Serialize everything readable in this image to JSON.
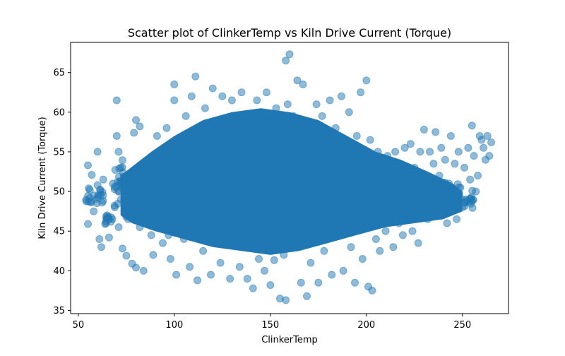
{
  "chart_data": {
    "type": "scatter",
    "title": "Scatter plot of ClinkerTemp vs Kiln Drive Current (Torque)",
    "xlabel": "ClinkerTemp",
    "ylabel": "Kiln Drive Current (Torque)",
    "xlim": [
      46,
      274
    ],
    "ylim": [
      34.6,
      68.8
    ],
    "xticks": [
      50,
      100,
      150,
      200,
      250
    ],
    "yticks": [
      35,
      40,
      45,
      50,
      55,
      60,
      65
    ],
    "xtick_labels": [
      "50",
      "100",
      "150",
      "200",
      "250"
    ],
    "ytick_labels": [
      "35",
      "40",
      "45",
      "50",
      "55",
      "60",
      "65"
    ],
    "grid": false,
    "legend": "none",
    "marker_color": "#1f77b4",
    "marker_alpha": 0.5,
    "points": [
      [
        55,
        53.3
      ],
      [
        55,
        45.9
      ],
      [
        56,
        50.2
      ],
      [
        57,
        52.1
      ],
      [
        58,
        47.5
      ],
      [
        60,
        50.8
      ],
      [
        60,
        55.0
      ],
      [
        61,
        44.0
      ],
      [
        62,
        43.0
      ],
      [
        63,
        51.5
      ],
      [
        64,
        45.9
      ],
      [
        65,
        47.0
      ],
      [
        66,
        44.2
      ],
      [
        67,
        46.2
      ],
      [
        69,
        48.0
      ],
      [
        70,
        61.5
      ],
      [
        70,
        57.0
      ],
      [
        71,
        55.0
      ],
      [
        71,
        45.5
      ],
      [
        72,
        53.0
      ],
      [
        73,
        42.8
      ],
      [
        74,
        49.0
      ],
      [
        75,
        41.9
      ],
      [
        76,
        46.5
      ],
      [
        78,
        40.9
      ],
      [
        79,
        57.4
      ],
      [
        80,
        40.4
      ],
      [
        80,
        59.0
      ],
      [
        82,
        58.2
      ],
      [
        82,
        45.5
      ],
      [
        84,
        40.0
      ],
      [
        85,
        47.0
      ],
      [
        86,
        54.0
      ],
      [
        88,
        44.5
      ],
      [
        89,
        42.0
      ],
      [
        90,
        48.0
      ],
      [
        91,
        57.0
      ],
      [
        93,
        49.5
      ],
      [
        94,
        43.5
      ],
      [
        95,
        51.0
      ],
      [
        96,
        58.0
      ],
      [
        97,
        44.5
      ],
      [
        98,
        41.5
      ],
      [
        99,
        55.0
      ],
      [
        100,
        61.5
      ],
      [
        100,
        63.5
      ],
      [
        101,
        39.5
      ],
      [
        102,
        46.5
      ],
      [
        103,
        54.0
      ],
      [
        104,
        49.0
      ],
      [
        105,
        44.0
      ],
      [
        106,
        59.5
      ],
      [
        107,
        51.5
      ],
      [
        108,
        40.5
      ],
      [
        109,
        62.0
      ],
      [
        110,
        46.0
      ],
      [
        111,
        64.5
      ],
      [
        112,
        38.8
      ],
      [
        113,
        57.0
      ],
      [
        114,
        48.0
      ],
      [
        115,
        42.5
      ],
      [
        116,
        60.5
      ],
      [
        117,
        53.0
      ],
      [
        118,
        45.0
      ],
      [
        119,
        39.5
      ],
      [
        120,
        63.0
      ],
      [
        121,
        50.0
      ],
      [
        122,
        47.0
      ],
      [
        123,
        56.0
      ],
      [
        124,
        41.0
      ],
      [
        125,
        62.0
      ],
      [
        126,
        52.0
      ],
      [
        127,
        44.5
      ],
      [
        128,
        58.5
      ],
      [
        129,
        39.0
      ],
      [
        130,
        61.5
      ],
      [
        131,
        49.0
      ],
      [
        132,
        43.5
      ],
      [
        133,
        55.5
      ],
      [
        134,
        40.5
      ],
      [
        135,
        62.5
      ],
      [
        136,
        47.5
      ],
      [
        137,
        54.0
      ],
      [
        138,
        39.0
      ],
      [
        139,
        59.5
      ],
      [
        140,
        45.0
      ],
      [
        141,
        37.8
      ],
      [
        142,
        52.0
      ],
      [
        143,
        61.5
      ],
      [
        144,
        41.5
      ],
      [
        145,
        56.5
      ],
      [
        146,
        48.0
      ],
      [
        147,
        40.0
      ],
      [
        148,
        62.5
      ],
      [
        149,
        50.5
      ],
      [
        150,
        38.2
      ],
      [
        151,
        57.5
      ],
      [
        152,
        44.0
      ],
      [
        153,
        60.5
      ],
      [
        154,
        46.5
      ],
      [
        155,
        36.5
      ],
      [
        156,
        53.5
      ],
      [
        157,
        42.0
      ],
      [
        158,
        66.5
      ],
      [
        158,
        36.3
      ],
      [
        159,
        61.0
      ],
      [
        160,
        67.3
      ],
      [
        160,
        48.5
      ],
      [
        161,
        43.5
      ],
      [
        162,
        59.5
      ],
      [
        163,
        45.0
      ],
      [
        164,
        64.0
      ],
      [
        165,
        51.0
      ],
      [
        166,
        38.5
      ],
      [
        167,
        63.5
      ],
      [
        168,
        47.0
      ],
      [
        169,
        36.8
      ],
      [
        170,
        58.5
      ],
      [
        171,
        41.0
      ],
      [
        172,
        55.0
      ],
      [
        173,
        46.0
      ],
      [
        174,
        61.0
      ],
      [
        175,
        38.5
      ],
      [
        176,
        50.0
      ],
      [
        177,
        59.5
      ],
      [
        178,
        42.5
      ],
      [
        179,
        56.0
      ],
      [
        180,
        45.0
      ],
      [
        181,
        61.5
      ],
      [
        182,
        39.5
      ],
      [
        183,
        52.5
      ],
      [
        184,
        58.0
      ],
      [
        185,
        44.5
      ],
      [
        186,
        49.0
      ],
      [
        187,
        62.0
      ],
      [
        188,
        40.0
      ],
      [
        189,
        55.0
      ],
      [
        190,
        46.5
      ],
      [
        191,
        60.0
      ],
      [
        192,
        43.0
      ],
      [
        193,
        52.5
      ],
      [
        194,
        38.5
      ],
      [
        195,
        57.0
      ],
      [
        196,
        48.0
      ],
      [
        197,
        62.5
      ],
      [
        198,
        41.5
      ],
      [
        199,
        54.0
      ],
      [
        200,
        64.0
      ],
      [
        200,
        45.5
      ],
      [
        201,
        38.0
      ],
      [
        202,
        56.5
      ],
      [
        203,
        37.5
      ],
      [
        204,
        51.0
      ],
      [
        205,
        44.0
      ],
      [
        206,
        55.0
      ],
      [
        207,
        42.5
      ],
      [
        208,
        49.5
      ],
      [
        209,
        53.5
      ],
      [
        210,
        45.0
      ],
      [
        211,
        54.5
      ],
      [
        212,
        47.0
      ],
      [
        213,
        51.5
      ],
      [
        214,
        43.0
      ],
      [
        215,
        55.0
      ],
      [
        216,
        48.5
      ],
      [
        217,
        46.0
      ],
      [
        218,
        52.5
      ],
      [
        219,
        44.5
      ],
      [
        220,
        55.5
      ],
      [
        221,
        49.0
      ],
      [
        222,
        47.5
      ],
      [
        223,
        56.0
      ],
      [
        224,
        45.0
      ],
      [
        225,
        53.0
      ],
      [
        226,
        50.5
      ],
      [
        227,
        43.5
      ],
      [
        228,
        55.0
      ],
      [
        229,
        48.0
      ],
      [
        230,
        57.8
      ],
      [
        231,
        51.5
      ],
      [
        232,
        46.5
      ],
      [
        233,
        55.0
      ],
      [
        234,
        49.0
      ],
      [
        235,
        53.5
      ],
      [
        236,
        57.5
      ],
      [
        237,
        47.5
      ],
      [
        238,
        52.0
      ],
      [
        239,
        55.5
      ],
      [
        240,
        49.5
      ],
      [
        241,
        54.0
      ],
      [
        242,
        46.0
      ],
      [
        243,
        51.0
      ],
      [
        244,
        57.0
      ],
      [
        245,
        48.5
      ],
      [
        246,
        53.5
      ],
      [
        247,
        46.5
      ],
      [
        248,
        55.0
      ],
      [
        249,
        50.5
      ],
      [
        250,
        48.0
      ],
      [
        251,
        53.0
      ],
      [
        252,
        49.0
      ],
      [
        253,
        55.5
      ],
      [
        254,
        51.5
      ],
      [
        255,
        58.3
      ],
      [
        256,
        54.5
      ],
      [
        257,
        50.0
      ],
      [
        258,
        52.0
      ],
      [
        259,
        57.0
      ],
      [
        260,
        56.5
      ],
      [
        261,
        55.5
      ],
      [
        262,
        54.0
      ],
      [
        263,
        57.0
      ],
      [
        264,
        54.5
      ],
      [
        265,
        56.2
      ]
    ],
    "bands": [
      [
        54,
        56,
        46,
        52.5,
        6
      ],
      [
        56,
        61,
        45.5,
        51.5,
        6
      ],
      [
        60,
        64,
        44,
        54,
        8
      ],
      [
        64,
        68,
        45,
        48.5,
        10
      ],
      [
        68,
        74,
        44,
        58,
        24
      ],
      [
        74,
        82,
        42,
        54,
        35
      ],
      [
        82,
        90,
        43.5,
        55,
        60
      ],
      [
        90,
        100,
        42,
        56,
        90
      ],
      [
        100,
        110,
        40.5,
        58,
        130
      ],
      [
        110,
        120,
        40,
        60,
        150
      ],
      [
        120,
        130,
        40,
        61,
        170
      ],
      [
        130,
        140,
        39.5,
        61.5,
        180
      ],
      [
        140,
        150,
        39,
        62,
        190
      ],
      [
        150,
        160,
        38.5,
        62,
        190
      ],
      [
        160,
        170,
        39,
        61.5,
        170
      ],
      [
        170,
        180,
        40,
        60.5,
        140
      ],
      [
        180,
        190,
        41,
        59.5,
        110
      ],
      [
        190,
        200,
        42,
        58,
        80
      ],
      [
        200,
        210,
        43,
        57,
        55
      ],
      [
        210,
        220,
        43.5,
        55.5,
        40
      ],
      [
        220,
        230,
        44,
        55,
        30
      ],
      [
        230,
        240,
        45.5,
        55,
        24
      ],
      [
        240,
        250,
        46,
        53,
        20
      ],
      [
        250,
        256,
        46.5,
        51,
        14
      ]
    ]
  }
}
